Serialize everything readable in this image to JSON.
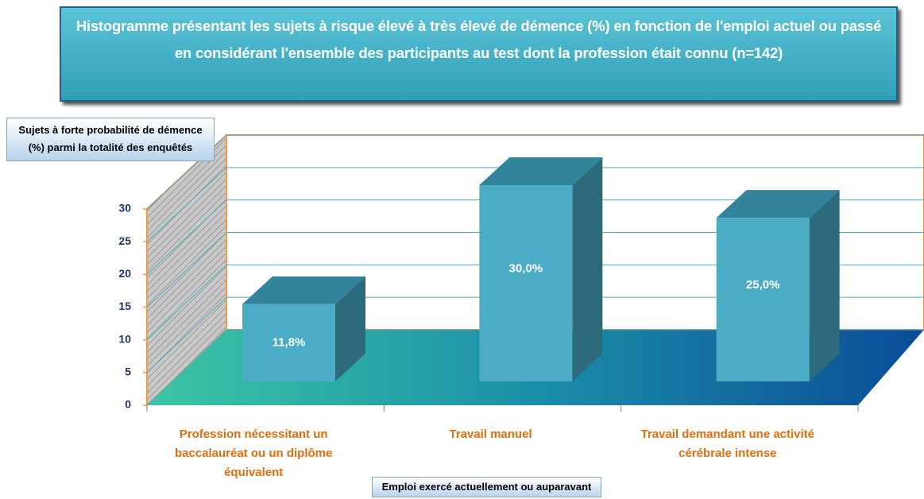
{
  "chart_data": {
    "type": "bar3d",
    "title": "Histogramme présentant les sujets à risque élevé à très élevé de démence (%) en fonction de l'emploi actuel ou passé en considérant l'ensemble des participants au test dont la profession était connu (n=142)",
    "y_label": "Sujets à forte probabilité de démence (%) parmi la totalité des enquêtés",
    "x_label": "Emploi exercé actuellement ou auparavant",
    "categories": [
      "Profession nécessitant un baccalauréat ou un diplôme équivalent",
      "Travail manuel",
      "Travail demandant une activité cérébrale intense"
    ],
    "values": [
      11.8,
      30,
      25
    ],
    "value_labels": [
      "11,8%",
      "30,0%",
      "25,0%"
    ],
    "color": "#4bacc6",
    "ylim": [
      0,
      30
    ],
    "yticks": [
      0,
      5,
      10,
      15,
      20,
      25,
      30
    ],
    "grid": true
  }
}
